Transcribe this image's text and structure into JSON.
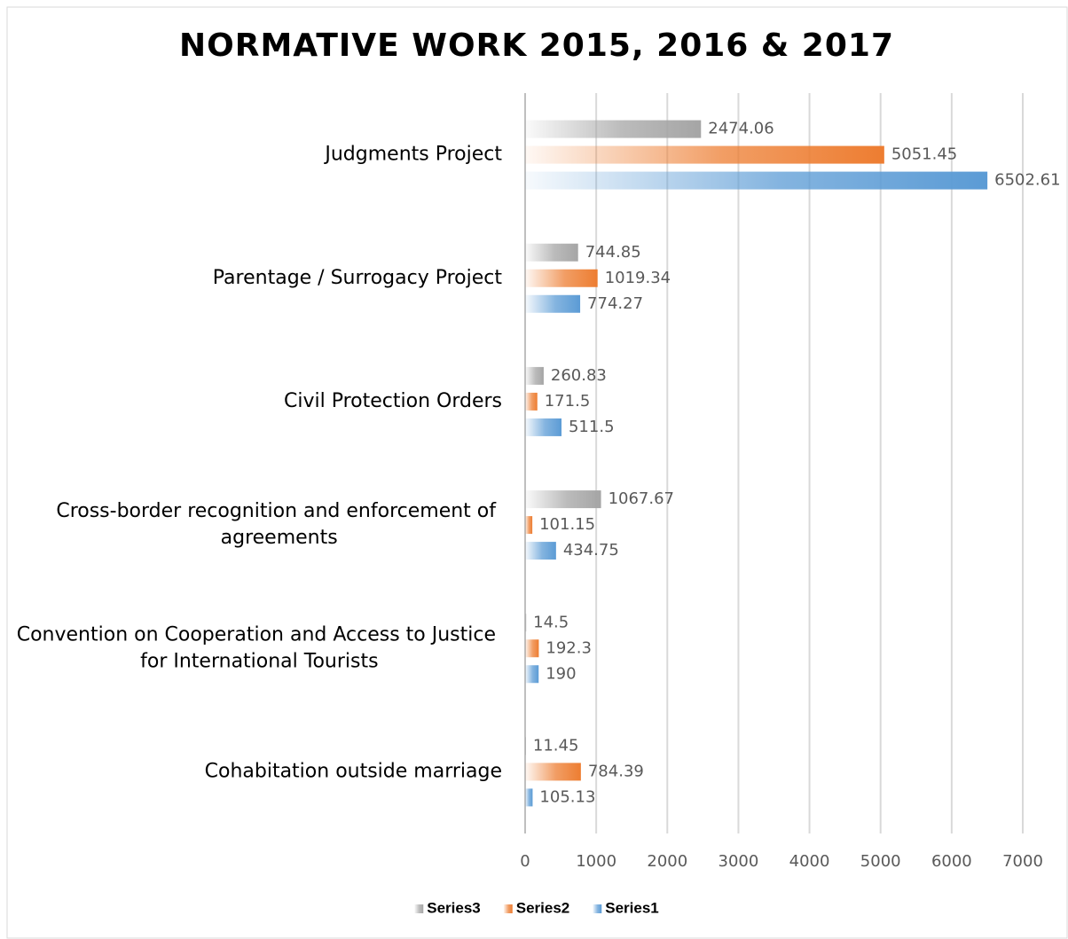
{
  "chart_data": {
    "type": "bar",
    "orientation": "horizontal",
    "title": "NORMATIVE WORK 2015, 2016 & 2017",
    "categories": [
      "Judgments Project",
      "Parentage / Surrogacy Project",
      "Civil Protection Orders",
      "Cross-border recognition and enforcement of agreements",
      "Convention on Cooperation and Access to Justice for International Tourists",
      "Cohabitation outside marriage"
    ],
    "series": [
      {
        "name": "Series3",
        "color": "#a5a5a5",
        "values": [
          2474.06,
          744.85,
          260.83,
          1067.67,
          14.5,
          11.45
        ]
      },
      {
        "name": "Series2",
        "color": "#ed7d31",
        "values": [
          5051.45,
          1019.34,
          171.5,
          101.15,
          192.3,
          784.39
        ]
      },
      {
        "name": "Series1",
        "color": "#5b9bd5",
        "values": [
          6502.61,
          774.27,
          511.5,
          434.75,
          190,
          105.13
        ]
      }
    ],
    "xlim": [
      0,
      7000
    ],
    "xticks": [
      0,
      1000,
      2000,
      3000,
      4000,
      5000,
      6000,
      7000
    ],
    "grid": true,
    "legend": "bottom"
  }
}
